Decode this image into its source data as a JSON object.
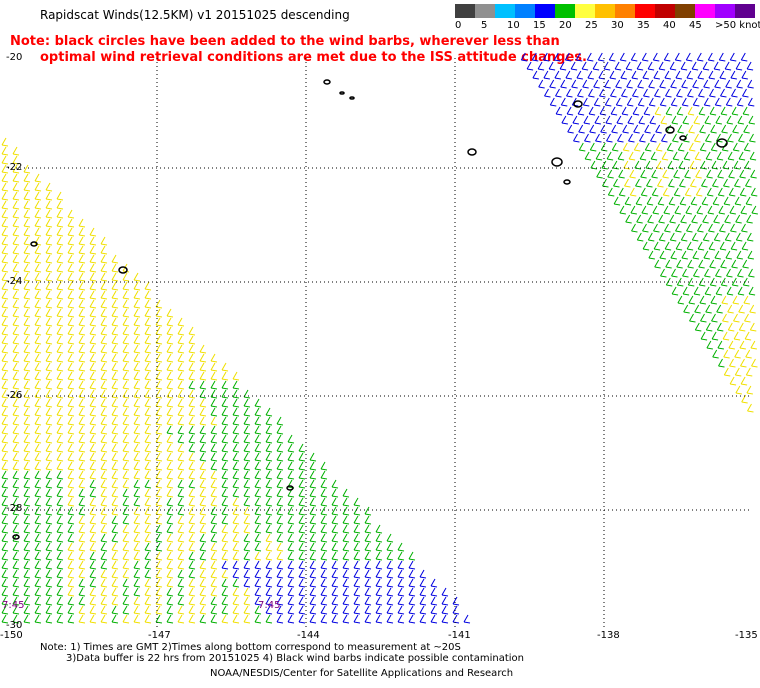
{
  "title": "Rapidscat Winds(12.5KM) v1 20151025 descending",
  "note_line1": "Note: black circles have been added to the wind barbs, wherever less than",
  "note_line2": "optimal wind retrieval conditions are met due to the ISS attitude changes.",
  "legend": {
    "labels": [
      "0",
      "5",
      "10",
      "15",
      "20",
      "25",
      "30",
      "35",
      "40",
      "45",
      ">50 knots"
    ],
    "colors": [
      "#404040",
      "#909090",
      "#00c0ff",
      "#0080ff",
      "#0000ff",
      "#00c000",
      "#ffff40",
      "#ffc000",
      "#ff8000",
      "#ff0000",
      "#c00000",
      "#804000",
      "#ff00ff",
      "#a000ff",
      "#600090"
    ]
  },
  "axes": {
    "lat_labels": [
      "-20",
      "-22",
      "-24",
      "-26",
      "-28",
      "-30"
    ],
    "lon_labels": [
      "-150",
      "-147",
      "-144",
      "-141",
      "-138",
      "-135"
    ]
  },
  "time_labels": [
    "7:45",
    "7:45"
  ],
  "footer": {
    "line1": "Note: 1) Times are GMT 2)Times along bottom correspond to measurement at ~20S",
    "line2": "3)Data buffer is 22 hrs from 20151025 4) Black wind barbs indicate possible contamination",
    "line3": "NOAA/NESDIS/Center for Satellite Applications and Research"
  },
  "colors": {
    "yellow": "#f0e000",
    "green": "#00b000",
    "blue": "#0000e0",
    "grid": "#000000",
    "note": "#ff0000"
  }
}
